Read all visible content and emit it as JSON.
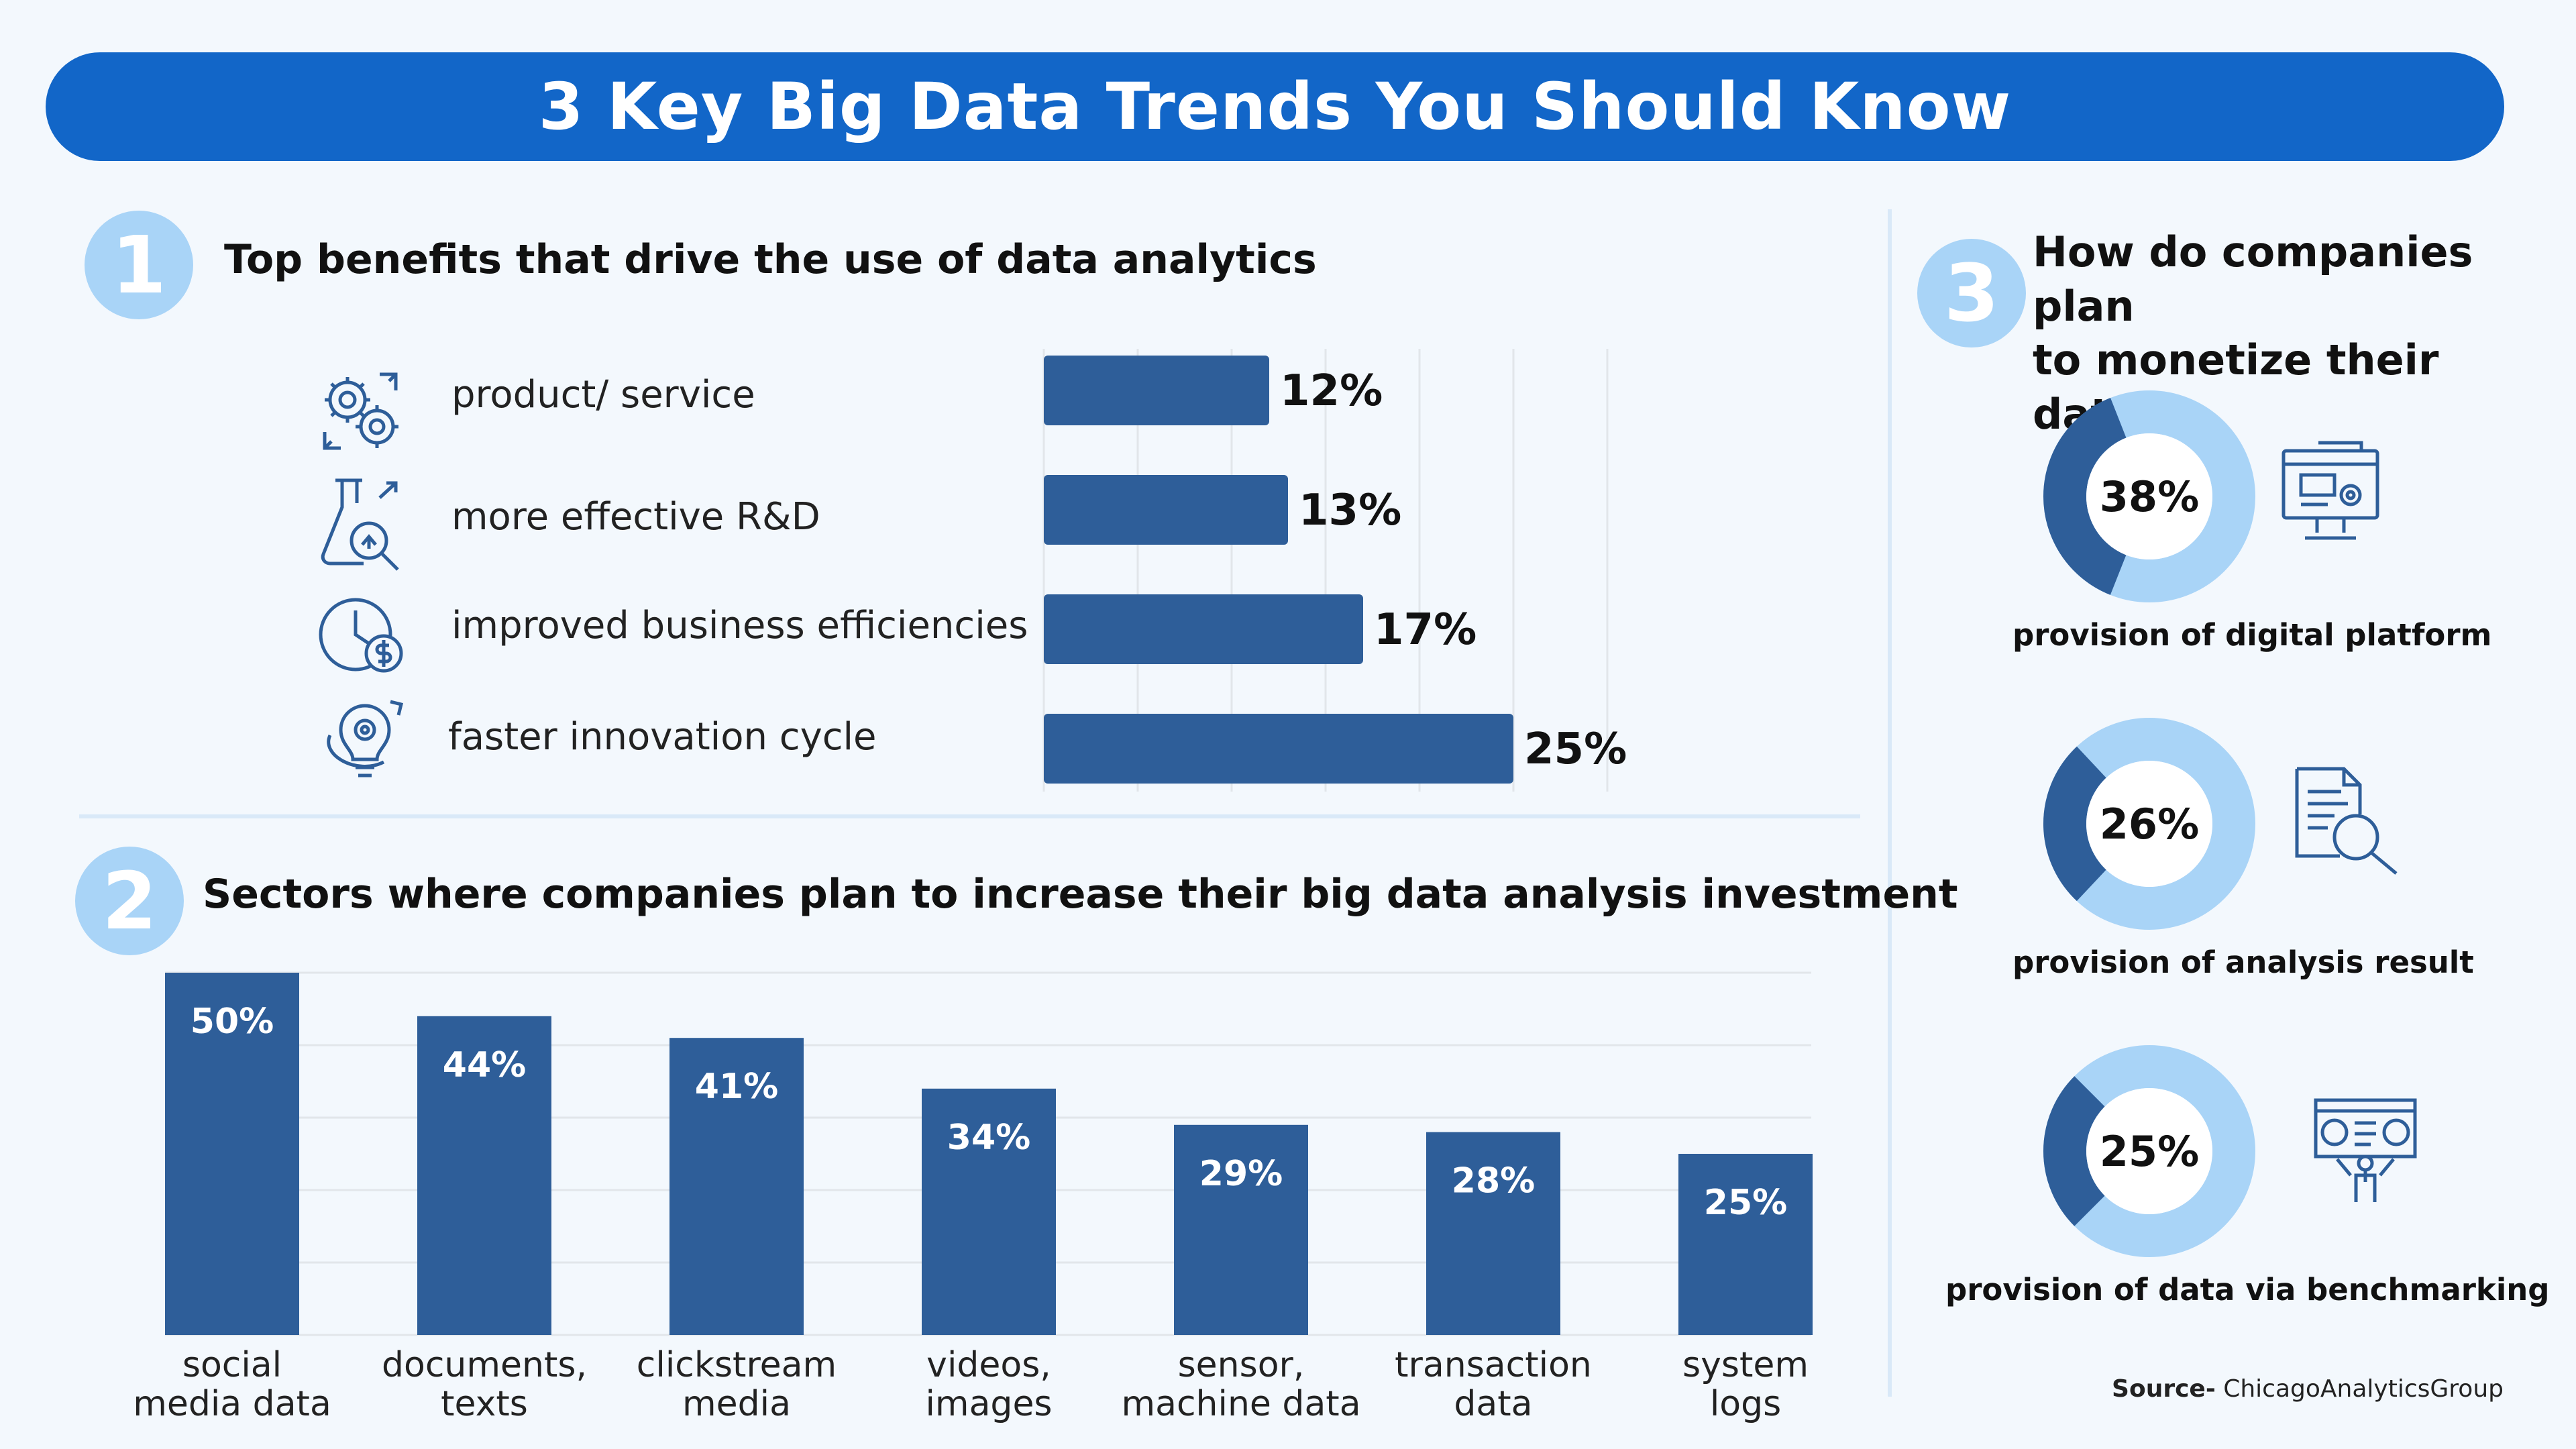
{
  "page_title": "3 Key Big Data Trends You Should Know",
  "section1": {
    "number": "1",
    "heading": "Top benefits that drive the use of data analytics",
    "items": [
      {
        "label": "product/ service",
        "icon": "gears-cycle-icon"
      },
      {
        "label": "more effective R&D",
        "icon": "lab-flask-search-icon"
      },
      {
        "label": "improved business efficiencies",
        "icon": "clock-dollar-icon"
      },
      {
        "label": "faster innovation cycle",
        "icon": "lightbulb-gear-icon"
      }
    ]
  },
  "section2": {
    "number": "2",
    "heading": "Sectors where companies plan to increase their big data analysis investment"
  },
  "section3": {
    "number": "3",
    "heading_line1": "How do companies plan",
    "heading_line2": "to monetize their data?",
    "items": [
      {
        "label": "provision of digital platform",
        "icon": "monitor-gear-icon"
      },
      {
        "label": "provision of analysis result",
        "icon": "document-magnifier-icon"
      },
      {
        "label": "provision of data via benchmarking",
        "icon": "presenter-dashboard-icon"
      }
    ]
  },
  "source": {
    "prefix": "Source-",
    "name": " ChicagoAnalyticsGroup"
  },
  "colors": {
    "banner": "#1266c8",
    "bar": "#2e5e99",
    "badge": "#a9d4f7",
    "donut_light": "#a9d4f7",
    "donut_dark": "#2e5e99",
    "background": "#f3f8fd",
    "grid": "#e2e6ea"
  },
  "chart_data": [
    {
      "type": "bar",
      "orientation": "horizontal",
      "title": "Top benefits that drive the use of data analytics",
      "categories": [
        "product/ service",
        "more effective R&D",
        "improved business efficiencies",
        "faster innovation cycle"
      ],
      "values": [
        12,
        13,
        17,
        25
      ],
      "value_labels": [
        "12%",
        "13%",
        "17%",
        "25%"
      ],
      "unit": "%",
      "xlim": [
        0,
        30
      ],
      "grid": true
    },
    {
      "type": "bar",
      "orientation": "vertical",
      "title": "Sectors where companies plan to increase their big data analysis investment",
      "categories": [
        [
          "social",
          "media data"
        ],
        [
          "documents,",
          "texts"
        ],
        [
          "clickstream",
          "media"
        ],
        [
          "videos,",
          "images"
        ],
        [
          "sensor,",
          "machine data"
        ],
        [
          "transaction",
          "data"
        ],
        [
          "system",
          "logs"
        ]
      ],
      "values": [
        50,
        44,
        41,
        34,
        29,
        28,
        25
      ],
      "value_labels": [
        "50%",
        "44%",
        "41%",
        "34%",
        "29%",
        "28%",
        "25%"
      ],
      "unit": "%",
      "ylim": [
        0,
        50
      ],
      "grid": true
    },
    {
      "type": "pie",
      "variant": "donut",
      "title": "How do companies plan to monetize their data?",
      "series": [
        {
          "name": "provision of digital platform",
          "value": 38,
          "label": "38%"
        },
        {
          "name": "provision of analysis result",
          "value": 26,
          "label": "26%"
        },
        {
          "name": "provision of data via benchmarking",
          "value": 25,
          "label": "25%"
        }
      ]
    }
  ]
}
